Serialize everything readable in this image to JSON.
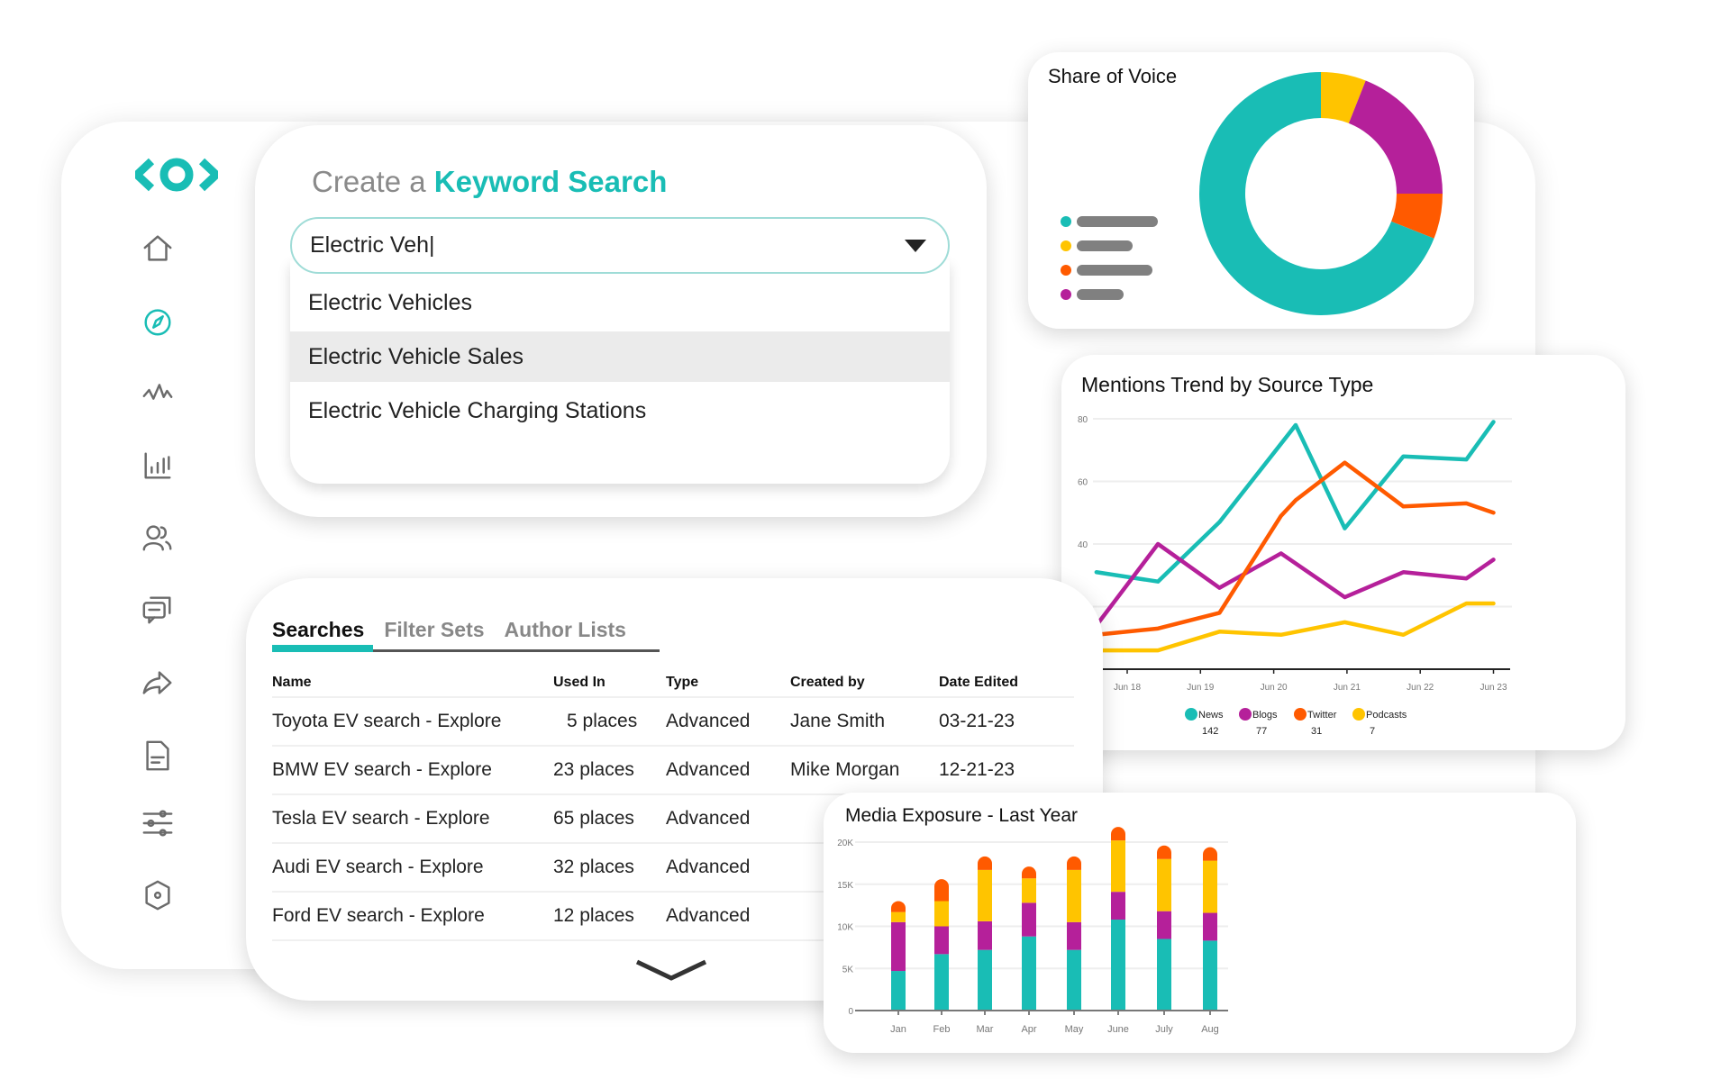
{
  "colors": {
    "teal": "#19bdb5",
    "purple": "#b5209a",
    "yellow": "#ffc400",
    "orange": "#ff5a00",
    "gray": "#6b6b6b"
  },
  "sidebar": {
    "items": [
      {
        "name": "home",
        "icon": "home-icon"
      },
      {
        "name": "explore",
        "icon": "compass-icon",
        "active": true
      },
      {
        "name": "monitor",
        "icon": "pulse-icon"
      },
      {
        "name": "analytics",
        "icon": "bar-chart-icon"
      },
      {
        "name": "audience",
        "icon": "users-icon"
      },
      {
        "name": "conversations",
        "icon": "chat-icon"
      },
      {
        "name": "share",
        "icon": "share-arrow-icon"
      },
      {
        "name": "reports",
        "icon": "document-icon"
      },
      {
        "name": "filters",
        "icon": "sliders-icon"
      },
      {
        "name": "settings",
        "icon": "gear-icon"
      }
    ]
  },
  "keyword_search": {
    "title_prefix": "Create a ",
    "title_emphasis": "Keyword Search",
    "input_value": "Electric Veh|",
    "options": [
      "Electric Vehicles",
      "Electric Vehicle Sales",
      "Electric Vehicle Charging Stations"
    ],
    "highlighted_index": 1
  },
  "searches": {
    "tabs": [
      "Searches",
      "Filter Sets",
      "Author Lists"
    ],
    "active_tab": 0,
    "columns": [
      "Name",
      "Used In",
      "Type",
      "Created by",
      "Date Edited"
    ],
    "rows": [
      [
        "Toyota EV search - Explore",
        "5 places",
        "Advanced",
        "Jane Smith",
        "03-21-23"
      ],
      [
        "BMW EV search - Explore",
        "23 places",
        "Advanced",
        "Mike Morgan",
        "12-21-23"
      ],
      [
        "Tesla EV search - Explore",
        "65 places",
        "Advanced",
        "",
        ""
      ],
      [
        "Audi EV search - Explore",
        "32 places",
        "Advanced",
        "",
        ""
      ],
      [
        "Ford EV search - Explore",
        "12 places",
        "Advanced",
        "",
        ""
      ]
    ]
  },
  "chart_data": [
    {
      "type": "pie",
      "title": "Share of Voice",
      "donut": true,
      "slices": [
        {
          "color": "#ffc400",
          "value": 6
        },
        {
          "color": "#b5209a",
          "value": 19
        },
        {
          "color": "#ff5a00",
          "value": 6
        },
        {
          "color": "#19bdb5",
          "value": 69
        }
      ],
      "legend_colors": [
        "#19bdb5",
        "#ffc400",
        "#ff5a00",
        "#b5209a"
      ]
    },
    {
      "type": "line",
      "title": "Mentions Trend by Source Type",
      "ylim": [
        0,
        80
      ],
      "yticks": [
        80,
        60,
        40
      ],
      "xticks": [
        {
          "day": 18,
          "label": "Jun 18"
        },
        {
          "day": 19,
          "label": "Jun 19"
        },
        {
          "day": 20,
          "label": "Jun 20"
        },
        {
          "day": 21,
          "label": "Jun 21"
        },
        {
          "day": 22,
          "label": "Jun 22"
        },
        {
          "day": 23,
          "label": "Jun 23"
        }
      ],
      "grid": true,
      "series": [
        {
          "name": "News",
          "total": "142",
          "color": "#19bdb5",
          "x": [
            17.58,
            18.42,
            19.26,
            20.3,
            20.97,
            21.77,
            22.63,
            23.0
          ],
          "y": [
            31,
            28,
            47,
            78,
            45,
            68,
            67,
            79
          ]
        },
        {
          "name": "Blogs",
          "total": "77",
          "color": "#b5209a",
          "x": [
            17.58,
            18.42,
            19.26,
            20.1,
            20.97,
            21.77,
            22.63,
            23.0
          ],
          "y": [
            14,
            40,
            26,
            37,
            23,
            31,
            29,
            35
          ]
        },
        {
          "name": "Twitter",
          "total": "31",
          "color": "#ff5a00",
          "x": [
            17.58,
            18.42,
            19.26,
            20.1,
            20.3,
            20.97,
            21.77,
            22.63,
            23.0
          ],
          "y": [
            11,
            13,
            18,
            49,
            54,
            66,
            52,
            53,
            50
          ]
        },
        {
          "name": "Podcasts",
          "total": "7",
          "color": "#ffc400",
          "x": [
            17.58,
            18.42,
            19.26,
            20.1,
            20.97,
            21.77,
            22.63,
            23.0
          ],
          "y": [
            6,
            6,
            12,
            11,
            15,
            11,
            21,
            21
          ]
        }
      ],
      "legend": "bottom"
    },
    {
      "type": "bar",
      "stacked": true,
      "title": "Media Exposure - Last Year",
      "categories": [
        "Jan",
        "Feb",
        "Mar",
        "Apr",
        "May",
        "June",
        "July",
        "Aug"
      ],
      "ylim": [
        0,
        20000
      ],
      "yticks": [
        {
          "v": 0,
          "label": "0"
        },
        {
          "v": 5000,
          "label": "5K"
        },
        {
          "v": 10000,
          "label": "10K"
        },
        {
          "v": 15000,
          "label": "15K"
        },
        {
          "v": 20000,
          "label": "20K"
        }
      ],
      "series": [
        {
          "color": "#19bdb5",
          "values": [
            4700,
            6700,
            7200,
            8800,
            7200,
            10800,
            8500,
            8300
          ]
        },
        {
          "color": "#b5209a",
          "values": [
            5800,
            3300,
            3400,
            4000,
            3300,
            3300,
            3300,
            3300
          ]
        },
        {
          "color": "#ffc400",
          "values": [
            1200,
            3000,
            6100,
            2900,
            6200,
            6100,
            6200,
            6200
          ]
        },
        {
          "color": "#ff5a00",
          "values": [
            1300,
            2600,
            1600,
            1400,
            1600,
            1600,
            1600,
            1600
          ]
        }
      ]
    }
  ]
}
